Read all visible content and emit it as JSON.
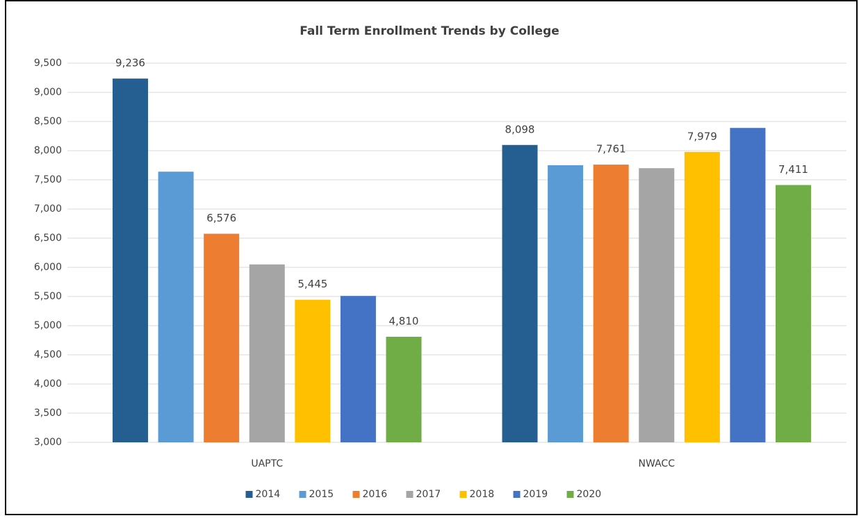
{
  "chart_data": {
    "type": "bar",
    "title": "Fall Term Enrollment Trends by College",
    "categories": [
      "UAPTC",
      "NWACC"
    ],
    "series": [
      {
        "name": "2014",
        "color": "#255e91",
        "values": [
          9236,
          8098
        ],
        "value_labels": [
          "9,236",
          "8,098"
        ]
      },
      {
        "name": "2015",
        "color": "#5b9bd5",
        "values": [
          7640,
          7750
        ],
        "value_labels": [
          null,
          null
        ]
      },
      {
        "name": "2016",
        "color": "#ed7d31",
        "values": [
          6576,
          7761
        ],
        "value_labels": [
          "6,576",
          "7,761"
        ]
      },
      {
        "name": "2017",
        "color": "#a5a5a5",
        "values": [
          6050,
          7700
        ],
        "value_labels": [
          null,
          null
        ]
      },
      {
        "name": "2018",
        "color": "#ffc000",
        "values": [
          5445,
          7979
        ],
        "value_labels": [
          "5,445",
          "7,979"
        ]
      },
      {
        "name": "2019",
        "color": "#4472c4",
        "values": [
          5510,
          8390
        ],
        "value_labels": [
          null,
          null
        ]
      },
      {
        "name": "2020",
        "color": "#70ad47",
        "values": [
          4810,
          7411
        ],
        "value_labels": [
          "4,810",
          "7,411"
        ]
      }
    ],
    "ylim": [
      3000,
      9500
    ],
    "yticks": [
      {
        "value": 3000,
        "label": "3,000"
      },
      {
        "value": 3500,
        "label": "3,500"
      },
      {
        "value": 4000,
        "label": "4,000"
      },
      {
        "value": 4500,
        "label": "4,500"
      },
      {
        "value": 5000,
        "label": "5,000"
      },
      {
        "value": 5500,
        "label": "5,500"
      },
      {
        "value": 6000,
        "label": "6,000"
      },
      {
        "value": 6500,
        "label": "6,500"
      },
      {
        "value": 7000,
        "label": "7,000"
      },
      {
        "value": 7500,
        "label": "7,500"
      },
      {
        "value": 8000,
        "label": "8,000"
      },
      {
        "value": 8500,
        "label": "8,500"
      },
      {
        "value": 9000,
        "label": "9,000"
      },
      {
        "value": 9500,
        "label": "9,500"
      }
    ],
    "grid": true,
    "legend": "bottom"
  }
}
